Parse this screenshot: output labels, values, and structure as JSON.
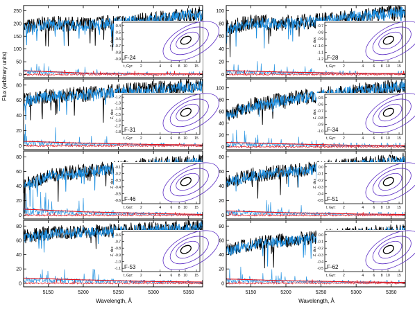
{
  "figure": {
    "ylabel": "Flux (arbitrary units)",
    "xlabel_left": "Wavelength, Å",
    "xlabel_right": "Wavelength, Å"
  },
  "colors": {
    "observed": "#000000",
    "model": "#1e8fe0",
    "residual_red": "#e0141e",
    "contour_dark": "#000000",
    "contour_purple": "#5b2cc4",
    "zero_line": "#e0141e"
  },
  "chart_data": [
    {
      "type": "line",
      "id": "F-24",
      "label": "F-24",
      "xlim": [
        5115,
        5370
      ],
      "ylim": [
        -12,
        270
      ],
      "xticks": [
        5150,
        5200,
        5250,
        5300,
        5350
      ],
      "yticks": [
        0,
        50,
        100,
        150,
        200,
        250
      ],
      "series": [
        {
          "role": "observed",
          "x": [
            5115,
            5150,
            5200,
            5250,
            5300,
            5350,
            5370
          ],
          "values": [
            185,
            200,
            195,
            205,
            215,
            230,
            240
          ]
        },
        {
          "role": "model",
          "x": [
            5115,
            5150,
            5200,
            5250,
            5300,
            5350,
            5370
          ],
          "values": [
            180,
            198,
            190,
            203,
            214,
            232,
            238
          ]
        },
        {
          "role": "residual",
          "x": [
            5115,
            5200,
            5300,
            5370
          ],
          "values": [
            25,
            10,
            5,
            5
          ]
        }
      ],
      "inset": {
        "ylabel": "Z, dex",
        "xlabel": "t, Gyr:",
        "xticks": [
          2,
          4,
          6,
          8,
          10,
          15
        ],
        "yticks": [
          -0.4,
          -0.5,
          -0.6,
          -0.7,
          -0.8,
          -0.9
        ],
        "ylim": [
          -0.95,
          -0.35
        ]
      }
    },
    {
      "type": "line",
      "id": "F-28",
      "label": "F-28",
      "xlim": [
        5115,
        5370
      ],
      "ylim": [
        -5,
        108
      ],
      "xticks": [
        5150,
        5200,
        5250,
        5300,
        5350
      ],
      "yticks": [
        0,
        20,
        40,
        60,
        80,
        100
      ],
      "series": [
        {
          "role": "observed",
          "x": [
            5115,
            5150,
            5200,
            5250,
            5300,
            5350,
            5370
          ],
          "values": [
            72,
            82,
            80,
            85,
            92,
            97,
            100
          ]
        },
        {
          "role": "model",
          "x": [
            5115,
            5150,
            5200,
            5250,
            5300,
            5350,
            5370
          ],
          "values": [
            70,
            80,
            79,
            84,
            91,
            96,
            99
          ]
        },
        {
          "role": "residual",
          "x": [
            5115,
            5200,
            5300,
            5370
          ],
          "values": [
            10,
            6,
            3,
            2
          ]
        }
      ],
      "inset": {
        "ylabel": "Z, dex",
        "xlabel": "t, Gyr:",
        "xticks": [
          2,
          4,
          6,
          8,
          10,
          15
        ],
        "yticks": [
          -0.7,
          -0.8,
          -0.9,
          -1.0,
          -1.1,
          -1.2
        ],
        "ylim": [
          -1.25,
          -0.65
        ]
      }
    },
    {
      "type": "line",
      "id": "F-31",
      "label": "F-31",
      "xlim": [
        5115,
        5370
      ],
      "ylim": [
        -5,
        88
      ],
      "xticks": [
        5150,
        5200,
        5250,
        5300,
        5350
      ],
      "yticks": [
        0,
        20,
        40,
        60,
        80
      ],
      "series": [
        {
          "role": "observed",
          "x": [
            5115,
            5150,
            5200,
            5250,
            5300,
            5350,
            5370
          ],
          "values": [
            60,
            66,
            68,
            72,
            75,
            78,
            80
          ]
        },
        {
          "role": "model",
          "x": [
            5115,
            5150,
            5200,
            5250,
            5300,
            5350,
            5370
          ],
          "values": [
            58,
            65,
            67,
            71,
            74,
            77,
            79
          ]
        },
        {
          "role": "residual",
          "x": [
            5115,
            5200,
            5300,
            5370
          ],
          "values": [
            10,
            6,
            3,
            2
          ]
        }
      ],
      "inset": {
        "ylabel": "Z, dex",
        "xlabel": "t, Gyr:",
        "xticks": [
          2,
          4,
          6,
          8,
          10,
          15
        ],
        "yticks": [
          -1.2,
          -1.3,
          -1.4,
          -1.5,
          -1.6,
          -1.7,
          -1.8
        ],
        "ylim": [
          -1.85,
          -1.15
        ]
      }
    },
    {
      "type": "line",
      "id": "F-34",
      "label": "F-34",
      "xlim": [
        5115,
        5370
      ],
      "ylim": [
        -5,
        115
      ],
      "xticks": [
        5150,
        5200,
        5250,
        5300,
        5350
      ],
      "yticks": [
        0,
        20,
        40,
        60,
        80,
        100
      ],
      "series": [
        {
          "role": "observed",
          "x": [
            5115,
            5150,
            5200,
            5250,
            5300,
            5350,
            5370
          ],
          "values": [
            55,
            70,
            80,
            88,
            95,
            100,
            105
          ]
        },
        {
          "role": "model",
          "x": [
            5115,
            5150,
            5200,
            5250,
            5300,
            5350,
            5370
          ],
          "values": [
            54,
            69,
            79,
            87,
            94,
            99,
            104
          ]
        },
        {
          "role": "residual",
          "x": [
            5115,
            5200,
            5300,
            5370
          ],
          "values": [
            12,
            8,
            4,
            3
          ]
        }
      ],
      "inset": {
        "ylabel": "Z, dex",
        "xlabel": "t, Gyr:",
        "xticks": [
          2,
          4,
          6,
          8,
          10,
          15
        ],
        "yticks": [
          -0.5,
          -0.6,
          -0.7,
          -0.8,
          -0.9,
          -1.0
        ],
        "ylim": [
          -1.05,
          -0.45
        ]
      }
    },
    {
      "type": "line",
      "id": "F-46",
      "label": "F-46",
      "xlim": [
        5115,
        5370
      ],
      "ylim": [
        -5,
        88
      ],
      "xticks": [
        5150,
        5200,
        5250,
        5300,
        5350
      ],
      "yticks": [
        0,
        20,
        40,
        60,
        80
      ],
      "series": [
        {
          "role": "observed",
          "x": [
            5115,
            5150,
            5200,
            5250,
            5300,
            5350,
            5370
          ],
          "values": [
            40,
            55,
            60,
            65,
            70,
            72,
            75
          ]
        },
        {
          "role": "model",
          "x": [
            5115,
            5150,
            5200,
            5250,
            5300,
            5350,
            5370
          ],
          "values": [
            39,
            54,
            59,
            64,
            69,
            71,
            74
          ]
        },
        {
          "role": "residual",
          "x": [
            5115,
            5200,
            5300,
            5370
          ],
          "values": [
            14,
            8,
            4,
            2
          ]
        }
      ],
      "inset": {
        "ylabel": "Z, dex",
        "xlabel": "t, Gyr:",
        "xticks": [
          2,
          4,
          6,
          8,
          10,
          15
        ],
        "yticks": [
          -0.1,
          -0.2,
          -0.3,
          -0.4,
          -0.5,
          -0.6
        ],
        "ylim": [
          -0.65,
          -0.05
        ]
      }
    },
    {
      "type": "line",
      "id": "F-51",
      "label": "F-51",
      "xlim": [
        5115,
        5370
      ],
      "ylim": [
        -5,
        88
      ],
      "xticks": [
        5150,
        5200,
        5250,
        5300,
        5350
      ],
      "yticks": [
        0,
        20,
        40,
        60,
        80
      ],
      "series": [
        {
          "role": "observed",
          "x": [
            5115,
            5150,
            5200,
            5250,
            5300,
            5350,
            5370
          ],
          "values": [
            45,
            55,
            60,
            65,
            70,
            74,
            76
          ]
        },
        {
          "role": "model",
          "x": [
            5115,
            5150,
            5200,
            5250,
            5300,
            5350,
            5370
          ],
          "values": [
            44,
            54,
            59,
            64,
            69,
            73,
            75
          ]
        },
        {
          "role": "residual",
          "x": [
            5115,
            5200,
            5300,
            5370
          ],
          "values": [
            10,
            6,
            3,
            2
          ]
        }
      ],
      "inset": {
        "ylabel": "Z, dex",
        "xlabel": "t, Gyr:",
        "xticks": [
          2,
          4,
          6,
          8,
          10,
          15
        ],
        "yticks": [
          0.0,
          -0.1,
          -0.2,
          -0.3,
          -0.4,
          -0.5
        ],
        "ylim": [
          -0.55,
          0.05
        ]
      }
    },
    {
      "type": "line",
      "id": "F-53",
      "label": "F-53",
      "xlim": [
        5115,
        5370
      ],
      "ylim": [
        -5,
        88
      ],
      "xticks": [
        5150,
        5200,
        5250,
        5300,
        5350
      ],
      "yticks": [
        0,
        20,
        40,
        60,
        80
      ],
      "series": [
        {
          "role": "observed",
          "x": [
            5115,
            5150,
            5200,
            5250,
            5300,
            5350,
            5370
          ],
          "values": [
            65,
            70,
            72,
            74,
            76,
            78,
            80
          ]
        },
        {
          "role": "model",
          "x": [
            5115,
            5150,
            5200,
            5250,
            5300,
            5350,
            5370
          ],
          "values": [
            63,
            69,
            71,
            73,
            75,
            77,
            79
          ]
        },
        {
          "role": "residual",
          "x": [
            5115,
            5200,
            5300,
            5370
          ],
          "values": [
            12,
            8,
            4,
            3
          ]
        }
      ],
      "inset": {
        "ylabel": "Z, dex",
        "xlabel": "t, Gyr:",
        "xticks": [
          2,
          4,
          6,
          8,
          10,
          15
        ],
        "yticks": [
          -0.6,
          -0.7,
          -0.8,
          -0.9,
          -1.0,
          -1.1
        ],
        "ylim": [
          -1.15,
          -0.55
        ]
      }
    },
    {
      "type": "line",
      "id": "F-62",
      "label": "F-62",
      "xlim": [
        5115,
        5370
      ],
      "ylim": [
        -5,
        88
      ],
      "xticks": [
        5150,
        5200,
        5250,
        5300,
        5350
      ],
      "yticks": [
        0,
        20,
        40,
        60,
        80
      ],
      "series": [
        {
          "role": "observed",
          "x": [
            5115,
            5150,
            5200,
            5250,
            5300,
            5350,
            5370
          ],
          "values": [
            45,
            55,
            60,
            65,
            70,
            72,
            74
          ]
        },
        {
          "role": "model",
          "x": [
            5115,
            5150,
            5200,
            5250,
            5300,
            5350,
            5370
          ],
          "values": [
            44,
            54,
            59,
            64,
            69,
            71,
            73
          ]
        },
        {
          "role": "residual",
          "x": [
            5115,
            5200,
            5300,
            5370
          ],
          "values": [
            10,
            6,
            3,
            2
          ]
        }
      ],
      "inset": {
        "ylabel": "Z, dex",
        "xlabel": "t, Gyr:",
        "xticks": [
          2,
          4,
          6,
          8,
          10,
          15
        ],
        "yticks": [
          0.0,
          -0.1,
          -0.2,
          -0.3,
          -0.4,
          -0.5
        ],
        "ylim": [
          -0.55,
          0.05
        ]
      }
    }
  ]
}
